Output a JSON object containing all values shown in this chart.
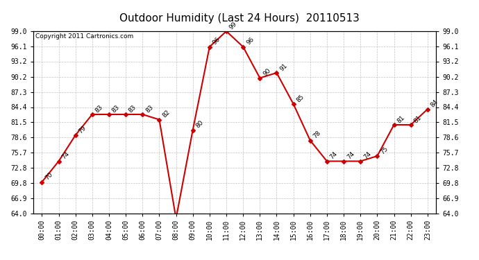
{
  "title": "Outdoor Humidity (Last 24 Hours)  20110513",
  "copyright_text": "Copyright 2011 Cartronics.com",
  "hours": [
    "00:00",
    "01:00",
    "02:00",
    "03:00",
    "04:00",
    "05:00",
    "06:00",
    "07:00",
    "08:00",
    "09:00",
    "10:00",
    "11:00",
    "12:00",
    "13:00",
    "14:00",
    "15:00",
    "16:00",
    "17:00",
    "18:00",
    "19:00",
    "20:00",
    "21:00",
    "22:00",
    "23:00"
  ],
  "values": [
    70,
    74,
    79,
    83,
    83,
    83,
    83,
    82,
    63,
    80,
    96,
    99,
    96,
    90,
    91,
    85,
    78,
    74,
    74,
    74,
    75,
    81,
    81,
    84
  ],
  "ylim_min": 64.0,
  "ylim_max": 99.0,
  "yticks": [
    64.0,
    66.9,
    69.8,
    72.8,
    75.7,
    78.6,
    81.5,
    84.4,
    87.3,
    90.2,
    93.2,
    96.1,
    99.0
  ],
  "line_color": "#cc0000",
  "marker": "D",
  "marker_size": 3,
  "background_color": "#ffffff",
  "grid_color": "#bbbbbb",
  "title_fontsize": 11,
  "label_fontsize": 7,
  "annotation_fontsize": 6.5,
  "copyright_fontsize": 6.5
}
